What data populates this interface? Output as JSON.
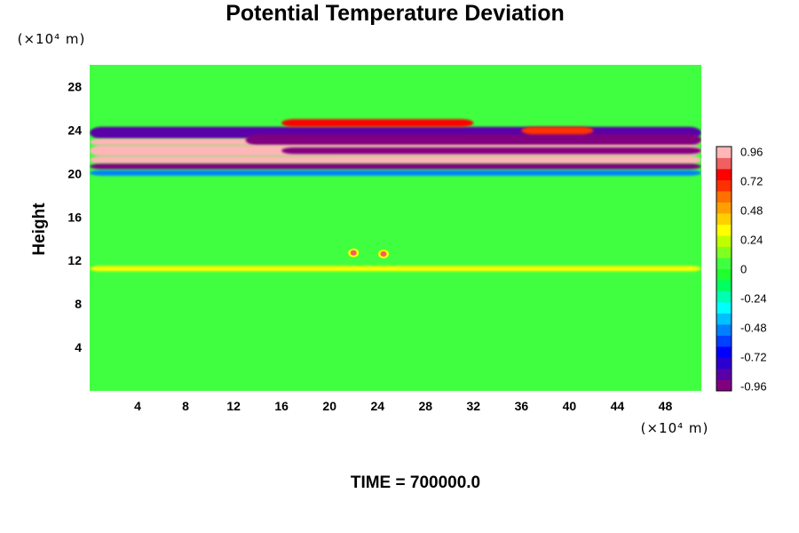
{
  "chart_data": {
    "type": "heatmap",
    "title": "Potential Temperature Deviation",
    "ylabel": "Height",
    "xunit": "(×10⁴ m)",
    "yunit": "(×10⁴ m)",
    "xlim": [
      0,
      51
    ],
    "ylim": [
      0,
      30
    ],
    "xticks": [
      "4",
      "8",
      "12",
      "16",
      "20",
      "24",
      "28",
      "32",
      "36",
      "40",
      "44",
      "48"
    ],
    "yticks": [
      "4",
      "8",
      "12",
      "16",
      "20",
      "24",
      "28"
    ],
    "colorbar": {
      "range": [
        -1.0,
        1.0
      ],
      "ticks": [
        "0.96",
        "0.72",
        "0.48",
        "0.24",
        "0",
        "-0.24",
        "-0.48",
        "-0.72",
        "-0.96"
      ],
      "colors": [
        "#800080",
        "#5a00a8",
        "#2a00d0",
        "#0000ff",
        "#0040ff",
        "#0080ff",
        "#00c0ff",
        "#00ffff",
        "#00ffb0",
        "#00ff60",
        "#20ff30",
        "#40ff40",
        "#80ff20",
        "#c0ff00",
        "#ffff00",
        "#ffd000",
        "#ffa000",
        "#ff7000",
        "#ff3000",
        "#ff0000",
        "#f06060",
        "#ffb6b6"
      ]
    },
    "background_color": "#40ff40",
    "bands": [
      {
        "x0": 0,
        "x1": 51,
        "y0": 23.2,
        "y1": 24.3,
        "level": -0.9,
        "note": "left segment"
      },
      {
        "x0": 0,
        "x1": 51,
        "y0": 22.6,
        "y1": 23.2,
        "level": 0.96
      },
      {
        "x0": 13,
        "x1": 51,
        "y0": 22.6,
        "y1": 23.6,
        "level": -0.96
      },
      {
        "x0": 0,
        "x1": 51,
        "y0": 21.6,
        "y1": 22.6,
        "level": 0.96
      },
      {
        "x0": 16,
        "x1": 51,
        "y0": 21.8,
        "y1": 22.4,
        "level": -0.96
      },
      {
        "x0": 0,
        "x1": 51,
        "y0": 20.9,
        "y1": 21.6,
        "level": 0.96
      },
      {
        "x0": 0,
        "x1": 51,
        "y0": 20.4,
        "y1": 20.9,
        "level": -0.96
      },
      {
        "x0": 16,
        "x1": 32,
        "y0": 24.3,
        "y1": 25.0,
        "level": 0.8
      },
      {
        "x0": 36,
        "x1": 42,
        "y0": 23.6,
        "y1": 24.3,
        "level": 0.7
      },
      {
        "x0": 0,
        "x1": 51,
        "y0": 19.8,
        "y1": 20.3,
        "level": -0.5
      },
      {
        "x0": 0,
        "x1": 51,
        "y0": 11.0,
        "y1": 11.5,
        "level": 0.3
      }
    ],
    "spots": [
      {
        "x": 22.0,
        "y": 12.7,
        "level": 0.9
      },
      {
        "x": 24.5,
        "y": 12.6,
        "level": 0.9
      }
    ]
  },
  "footer": {
    "time_label": "TIME = 700000.0"
  }
}
